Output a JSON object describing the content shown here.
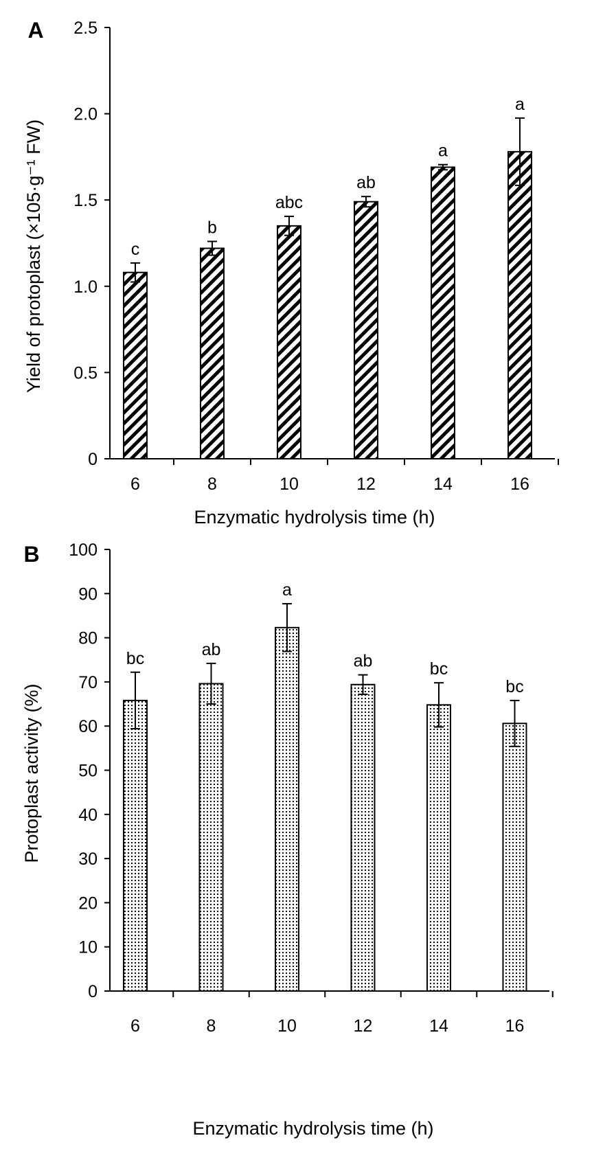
{
  "chart_data": [
    {
      "panel_label": "A",
      "type": "bar",
      "categories": [
        "6",
        "8",
        "10",
        "12",
        "14",
        "16"
      ],
      "values": [
        1.08,
        1.22,
        1.35,
        1.49,
        1.69,
        1.78
      ],
      "errors": [
        0.055,
        0.04,
        0.055,
        0.03,
        0.015,
        0.195
      ],
      "significance_labels": [
        "c",
        "b",
        "abc",
        "ab",
        "a",
        "a"
      ],
      "pattern": "diagonal-hatch",
      "xlabel": "Enzymatic hydrolysis time (h)",
      "ylabel": "Yield of protoplast (×105·g⁻¹ FW)",
      "ylim": [
        0,
        2.5
      ],
      "yticks": [
        "0",
        "0.5",
        "1.0",
        "1.5",
        "2.0",
        "2.5"
      ],
      "grid": false
    },
    {
      "panel_label": "B",
      "type": "bar",
      "categories": [
        "6",
        "8",
        "10",
        "12",
        "14",
        "16"
      ],
      "values": [
        65.8,
        69.6,
        82.3,
        69.4,
        64.8,
        60.6
      ],
      "errors": [
        6.4,
        4.6,
        5.4,
        2.2,
        5.0,
        5.2
      ],
      "significance_labels": [
        "bc",
        "ab",
        "a",
        "ab",
        "bc",
        "bc"
      ],
      "pattern": "dotted",
      "xlabel": "Enzymatic hydrolysis time (h)",
      "ylabel": "Protoplast activity (%)",
      "ylim": [
        0,
        100
      ],
      "yticks": [
        "0",
        "10",
        "20",
        "30",
        "40",
        "50",
        "60",
        "70",
        "80",
        "90",
        "100"
      ],
      "grid": false
    }
  ]
}
